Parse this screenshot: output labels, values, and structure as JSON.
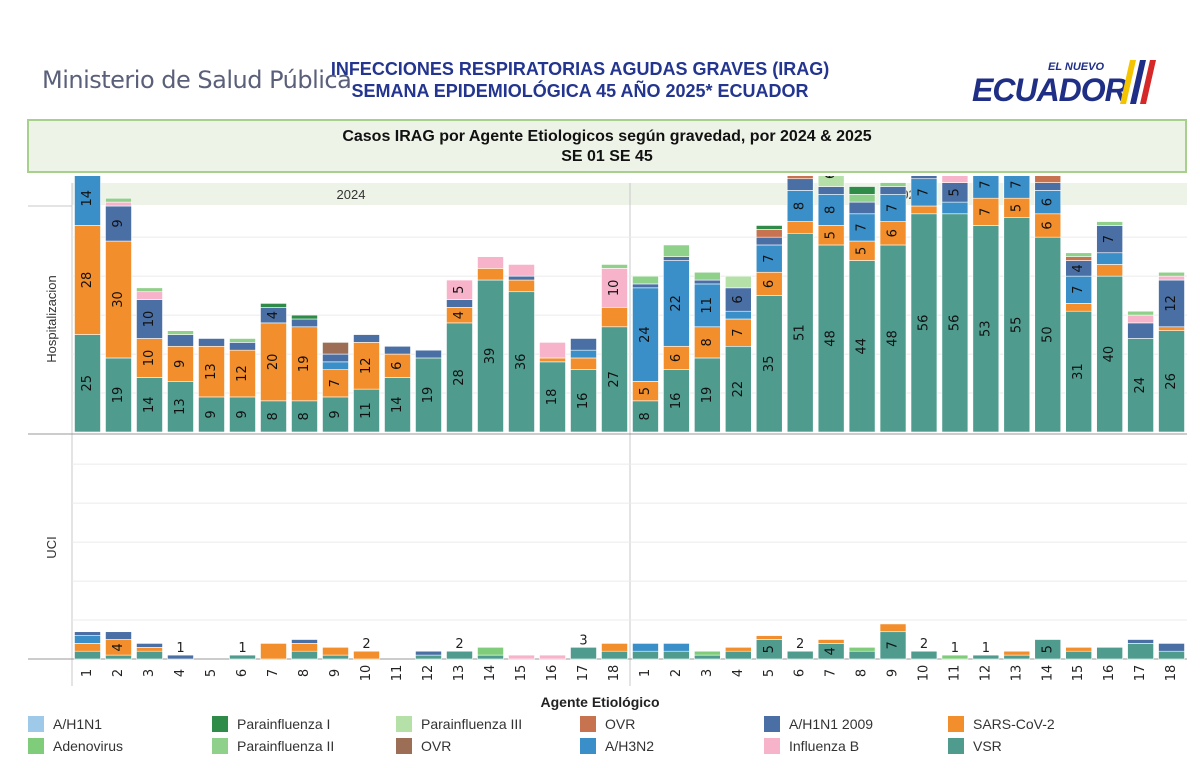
{
  "header": {
    "ministry": "Ministerio de Salud Pública",
    "title_line1": "INFECCIONES RESPIRATORIAS AGUDAS GRAVES (IRAG)",
    "title_line2": "SEMANA EPIDEMIOLÓGICA 45 AÑO 2025* ECUADOR",
    "logo_small": "EL NUEVO",
    "logo_main": "ECUADOR"
  },
  "subtitle": {
    "line1": "Casos IRAG por Agente Etiologicos  según gravedad, por  2024 & 2025",
    "line2": "SE 01  SE 45"
  },
  "colors": {
    "VSR": "#4f9c8f",
    "SARS-CoV-2": "#f28e2b",
    "A/H3N2": "#3a8fc9",
    "A/H1N1 2009": "#4a6fa5",
    "Influenza B": "#f7b3c9",
    "OVR_a": "#c8734f",
    "OVR_b": "#9b6e55",
    "Adenovirus": "#7fcc7a",
    "Parainfluenza II": "#8fd18a",
    "Parainfluenza III": "#b5e0a8",
    "Parainfluenza I": "#2e8b48",
    "A/H1N1": "#9ec9e8"
  },
  "chart_data": {
    "type": "bar",
    "stacked": true,
    "panels": [
      "2024",
      "2025"
    ],
    "rows": [
      "Hospitalizacion",
      "UCI"
    ],
    "categories": [
      "1",
      "2",
      "3",
      "4",
      "5",
      "6",
      "7",
      "8",
      "9",
      "10",
      "11",
      "12",
      "13",
      "14",
      "15",
      "16",
      "17",
      "18"
    ],
    "xlabel": "Agente Etiológico",
    "ylim": [
      0,
      58
    ],
    "grid": true,
    "legend_position": "bottom",
    "stack_order": [
      "VSR",
      "SARS-CoV-2",
      "A/H3N2",
      "A/H1N1 2009",
      "Influenza B",
      "OVR_a",
      "OVR_b",
      "Adenovirus",
      "Parainfluenza II",
      "Parainfluenza III",
      "Parainfluenza I",
      "A/H1N1"
    ],
    "hospitalizacion": {
      "2024": [
        {
          "VSR": 25,
          "SARS-CoV-2": 28,
          "Influenza B": 3,
          "A/H1N1 2009": 13,
          "A/H3N2": 14,
          "Parainfluenza II": 2,
          "Parainfluenza I": 1
        },
        {
          "VSR": 19,
          "SARS-CoV-2": 30,
          "Influenza B": 1,
          "A/H1N1 2009": 9,
          "Parainfluenza II": 1
        },
        {
          "VSR": 14,
          "SARS-CoV-2": 10,
          "Influenza B": 2,
          "A/H1N1 2009": 10,
          "Parainfluenza II": 1
        },
        {
          "VSR": 13,
          "SARS-CoV-2": 9,
          "A/H1N1 2009": 3,
          "Parainfluenza II": 1
        },
        {
          "VSR": 9,
          "SARS-CoV-2": 13,
          "A/H1N1 2009": 2
        },
        {
          "VSR": 9,
          "SARS-CoV-2": 12,
          "A/H1N1 2009": 2,
          "Parainfluenza II": 1
        },
        {
          "VSR": 8,
          "SARS-CoV-2": 20,
          "A/H1N1 2009": 4,
          "Parainfluenza I": 1
        },
        {
          "VSR": 8,
          "SARS-CoV-2": 19,
          "A/H1N1 2009": 2,
          "Parainfluenza I": 1
        },
        {
          "VSR": 9,
          "SARS-CoV-2": 7,
          "A/H3N2": 2,
          "A/H1N1 2009": 2,
          "OVR_b": 3
        },
        {
          "VSR": 11,
          "SARS-CoV-2": 12,
          "A/H1N1 2009": 2
        },
        {
          "VSR": 14,
          "SARS-CoV-2": 6,
          "A/H1N1 2009": 2
        },
        {
          "VSR": 19,
          "A/H1N1 2009": 2
        },
        {
          "VSR": 28,
          "SARS-CoV-2": 4,
          "Influenza B": 5,
          "A/H1N1 2009": 2
        },
        {
          "VSR": 39,
          "SARS-CoV-2": 3,
          "Influenza B": 3
        },
        {
          "VSR": 36,
          "SARS-CoV-2": 3,
          "Influenza B": 3,
          "A/H1N1 2009": 1
        },
        {
          "VSR": 18,
          "SARS-CoV-2": 1,
          "Influenza B": 4
        },
        {
          "VSR": 16,
          "SARS-CoV-2": 3,
          "A/H3N2": 2,
          "A/H1N1 2009": 3
        },
        {
          "VSR": 27,
          "SARS-CoV-2": 5,
          "Influenza B": 10,
          "Parainfluenza II": 1
        }
      ],
      "2025": [
        {
          "VSR": 8,
          "SARS-CoV-2": 5,
          "A/H3N2": 24,
          "A/H1N1 2009": 1,
          "Parainfluenza II": 2
        },
        {
          "VSR": 16,
          "SARS-CoV-2": 6,
          "A/H3N2": 22,
          "A/H1N1 2009": 1,
          "Parainfluenza II": 3
        },
        {
          "VSR": 19,
          "SARS-CoV-2": 8,
          "A/H3N2": 11,
          "A/H1N1 2009": 1,
          "Parainfluenza II": 2
        },
        {
          "VSR": 22,
          "SARS-CoV-2": 7,
          "A/H3N2": 2,
          "A/H1N1 2009": 6,
          "Parainfluenza III": 3
        },
        {
          "VSR": 35,
          "SARS-CoV-2": 6,
          "A/H3N2": 7,
          "A/H1N1 2009": 2,
          "OVR_a": 2,
          "Parainfluenza I": 1
        },
        {
          "VSR": 51,
          "SARS-CoV-2": 3,
          "A/H3N2": 8,
          "A/H1N1 2009": 3,
          "OVR_a": 3,
          "Parainfluenza II": 2,
          "Parainfluenza I": 1
        },
        {
          "VSR": 48,
          "SARS-CoV-2": 5,
          "A/H3N2": 8,
          "A/H1N1 2009": 2,
          "Parainfluenza III": 6,
          "A/H1N1": 1
        },
        {
          "VSR": 44,
          "SARS-CoV-2": 5,
          "A/H3N2": 7,
          "A/H1N1 2009": 3,
          "Parainfluenza II": 2,
          "Parainfluenza I": 2
        },
        {
          "VSR": 48,
          "SARS-CoV-2": 6,
          "A/H3N2": 7,
          "A/H1N1 2009": 2,
          "Parainfluenza II": 1
        },
        {
          "VSR": 56,
          "SARS-CoV-2": 2,
          "A/H3N2": 7,
          "A/H1N1 2009": 2,
          "Parainfluenza II": 2
        },
        {
          "VSR": 56,
          "Influenza B": 4,
          "A/H3N2": 3,
          "A/H1N1 2009": 5,
          "OVR_a": 1
        },
        {
          "VSR": 53,
          "SARS-CoV-2": 7,
          "A/H3N2": 7,
          "A/H1N1 2009": 2,
          "OVR_a": 1
        },
        {
          "VSR": 55,
          "SARS-CoV-2": 5,
          "A/H3N2": 7,
          "A/H1N1 2009": 4,
          "Parainfluenza II": 1
        },
        {
          "VSR": 50,
          "SARS-CoV-2": 6,
          "A/H3N2": 6,
          "A/H1N1 2009": 2,
          "OVR_a": 2,
          "Parainfluenza I": 1
        },
        {
          "VSR": 31,
          "SARS-CoV-2": 2,
          "A/H3N2": 7,
          "A/H1N1 2009": 4,
          "OVR_a": 1,
          "Parainfluenza II": 1
        },
        {
          "VSR": 40,
          "SARS-CoV-2": 3,
          "A/H1N1 2009": 7,
          "A/H3N2": 3,
          "Parainfluenza II": 1
        },
        {
          "VSR": 24,
          "Influenza B": 2,
          "A/H1N1 2009": 4,
          "Parainfluenza II": 1
        },
        {
          "VSR": 26,
          "SARS-CoV-2": 1,
          "Influenza B": 1,
          "A/H1N1 2009": 12,
          "Parainfluenza II": 1
        }
      ]
    },
    "uci": {
      "2024": [
        {
          "VSR": 2,
          "SARS-CoV-2": 2,
          "A/H1N1 2009": 1,
          "A/H3N2": 2
        },
        {
          "VSR": 1,
          "SARS-CoV-2": 4,
          "A/H1N1 2009": 2
        },
        {
          "VSR": 2,
          "SARS-CoV-2": 1,
          "A/H1N1 2009": 1
        },
        {
          "A/H1N1 2009": 1
        },
        {},
        {
          "VSR": 1
        },
        {
          "SARS-CoV-2": 4
        },
        {
          "VSR": 2,
          "SARS-CoV-2": 2,
          "A/H1N1 2009": 1
        },
        {
          "VSR": 1,
          "SARS-CoV-2": 2
        },
        {
          "SARS-CoV-2": 2
        },
        {},
        {
          "VSR": 1,
          "A/H1N1 2009": 1
        },
        {
          "VSR": 2
        },
        {
          "VSR": 1,
          "Adenovirus": 2
        },
        {
          "Influenza B": 1
        },
        {
          "Influenza B": 1
        },
        {
          "VSR": 3
        },
        {
          "VSR": 2,
          "SARS-CoV-2": 2
        }
      ],
      "2025": [
        {
          "VSR": 2,
          "A/H3N2": 2
        },
        {
          "VSR": 2,
          "A/H3N2": 2
        },
        {
          "VSR": 1,
          "Adenovirus": 1
        },
        {
          "VSR": 2,
          "SARS-CoV-2": 1
        },
        {
          "VSR": 5,
          "SARS-CoV-2": 1
        },
        {
          "VSR": 2
        },
        {
          "VSR": 4,
          "SARS-CoV-2": 1
        },
        {
          "VSR": 2,
          "Adenovirus": 1
        },
        {
          "VSR": 7,
          "SARS-CoV-2": 2
        },
        {
          "VSR": 2
        },
        {
          "Adenovirus": 1
        },
        {
          "VSR": 1
        },
        {
          "VSR": 1,
          "SARS-CoV-2": 1
        },
        {
          "VSR": 5
        },
        {
          "VSR": 2,
          "SARS-CoV-2": 1
        },
        {
          "VSR": 3
        },
        {
          "VSR": 4,
          "A/H1N1 2009": 1
        },
        {
          "VSR": 2,
          "A/H1N1 2009": 2
        }
      ]
    },
    "labels": {
      "hospitalizacion": {
        "2024": [
          [
            [
              "VSR",
              25
            ],
            [
              "SARS-CoV-2",
              28
            ],
            [
              "A/H1N1 2009",
              13
            ],
            [
              "A/H3N2",
              14
            ]
          ],
          [
            [
              "VSR",
              19
            ],
            [
              "SARS-CoV-2",
              30
            ],
            [
              "A/H1N1 2009",
              9
            ]
          ],
          [
            [
              "VSR",
              14
            ],
            [
              "SARS-CoV-2",
              10
            ],
            [
              "A/H1N1 2009",
              10
            ]
          ],
          [
            [
              "VSR",
              13
            ],
            [
              "SARS-CoV-2",
              9
            ]
          ],
          [
            [
              "VSR",
              9
            ],
            [
              "SARS-CoV-2",
              13
            ]
          ],
          [
            [
              "VSR",
              9
            ],
            [
              "SARS-CoV-2",
              12
            ]
          ],
          [
            [
              "VSR",
              8
            ],
            [
              "SARS-CoV-2",
              20
            ],
            [
              "A/H1N1 2009",
              4
            ]
          ],
          [
            [
              "VSR",
              8
            ],
            [
              "SARS-CoV-2",
              19
            ]
          ],
          [
            [
              "VSR",
              9
            ],
            [
              "SARS-CoV-2",
              7
            ]
          ],
          [
            [
              "VSR",
              11
            ],
            [
              "SARS-CoV-2",
              12
            ]
          ],
          [
            [
              "VSR",
              14
            ],
            [
              "SARS-CoV-2",
              6
            ]
          ],
          [
            [
              "VSR",
              19
            ]
          ],
          [
            [
              "VSR",
              28
            ],
            [
              "SARS-CoV-2",
              4
            ],
            [
              "Influenza B",
              5
            ]
          ],
          [
            [
              "VSR",
              39
            ]
          ],
          [
            [
              "VSR",
              36
            ]
          ],
          [
            [
              "VSR",
              18
            ]
          ],
          [
            [
              "VSR",
              16
            ]
          ],
          [
            [
              "VSR",
              27
            ],
            [
              "Influenza B",
              10
            ]
          ]
        ],
        "2025": [
          [
            [
              "VSR",
              8
            ],
            [
              "SARS-CoV-2",
              5
            ],
            [
              "A/H3N2",
              24
            ]
          ],
          [
            [
              "VSR",
              16
            ],
            [
              "SARS-CoV-2",
              6
            ],
            [
              "A/H3N2",
              22
            ]
          ],
          [
            [
              "VSR",
              19
            ],
            [
              "SARS-CoV-2",
              8
            ],
            [
              "A/H3N2",
              11
            ]
          ],
          [
            [
              "VSR",
              22
            ],
            [
              "SARS-CoV-2",
              7
            ],
            [
              "A/H1N1 2009",
              6
            ]
          ],
          [
            [
              "VSR",
              35
            ],
            [
              "SARS-CoV-2",
              6
            ],
            [
              "A/H3N2",
              7
            ]
          ],
          [
            [
              "VSR",
              51
            ],
            [
              "A/H3N2",
              8
            ]
          ],
          [
            [
              "VSR",
              48
            ],
            [
              "SARS-CoV-2",
              5
            ],
            [
              "A/H3N2",
              8
            ],
            [
              "Parainfluenza III",
              6
            ]
          ],
          [
            [
              "VSR",
              44
            ],
            [
              "SARS-CoV-2",
              5
            ],
            [
              "A/H3N2",
              7
            ]
          ],
          [
            [
              "VSR",
              48
            ],
            [
              "SARS-CoV-2",
              6
            ],
            [
              "A/H3N2",
              7
            ]
          ],
          [
            [
              "VSR",
              56
            ],
            [
              "A/H3N2",
              7
            ]
          ],
          [
            [
              "VSR",
              56
            ],
            [
              "A/H1N1 2009",
              5
            ]
          ],
          [
            [
              "VSR",
              53
            ],
            [
              "SARS-CoV-2",
              7
            ],
            [
              "A/H3N2",
              7
            ]
          ],
          [
            [
              "VSR",
              55
            ],
            [
              "SARS-CoV-2",
              5
            ],
            [
              "A/H3N2",
              7
            ],
            [
              "A/H1N1 2009",
              4
            ]
          ],
          [
            [
              "VSR",
              50
            ],
            [
              "SARS-CoV-2",
              6
            ],
            [
              "A/H3N2",
              6
            ]
          ],
          [
            [
              "VSR",
              31
            ],
            [
              "A/H3N2",
              7
            ],
            [
              "A/H1N1 2009",
              4
            ]
          ],
          [
            [
              "VSR",
              40
            ],
            [
              "A/H1N1 2009",
              7
            ]
          ],
          [
            [
              "VSR",
              24
            ]
          ],
          [
            [
              "VSR",
              26
            ],
            [
              "A/H1N1 2009",
              12
            ]
          ]
        ]
      },
      "uci": {
        "2024": [
          [],
          [
            [
              "SARS-CoV-2",
              4
            ]
          ],
          [],
          [
            [
              "top",
              1
            ]
          ],
          [],
          [
            [
              "top",
              1
            ]
          ],
          [],
          [],
          [],
          [
            [
              "top",
              2
            ]
          ],
          [],
          [],
          [
            [
              "top",
              2
            ]
          ],
          [],
          [],
          [],
          [
            [
              "top",
              3
            ]
          ],
          []
        ],
        "2025": [
          [],
          [],
          [],
          [],
          [
            [
              "VSR",
              5
            ]
          ],
          [
            [
              "top",
              2
            ]
          ],
          [
            [
              "VSR",
              4
            ]
          ],
          [],
          [
            [
              "VSR",
              7
            ]
          ],
          [
            [
              "top",
              2
            ]
          ],
          [
            [
              "top",
              1
            ]
          ],
          [
            [
              "top",
              1
            ]
          ],
          [],
          [
            [
              "VSR",
              5
            ]
          ],
          [],
          [],
          [],
          []
        ]
      }
    },
    "legend": [
      {
        "label": "A/H1N1",
        "key": "A/H1N1"
      },
      {
        "label": "Parainfluenza I",
        "key": "Parainfluenza I"
      },
      {
        "label": "Parainfluenza III",
        "key": "Parainfluenza III"
      },
      {
        "label": "OVR",
        "key": "OVR_a"
      },
      {
        "label": "A/H1N1 2009",
        "key": "A/H1N1 2009"
      },
      {
        "label": "SARS-CoV-2",
        "key": "SARS-CoV-2"
      },
      {
        "label": "Adenovirus",
        "key": "Adenovirus"
      },
      {
        "label": "Parainfluenza II",
        "key": "Parainfluenza II"
      },
      {
        "label": "OVR",
        "key": "OVR_b"
      },
      {
        "label": "A/H3N2",
        "key": "A/H3N2"
      },
      {
        "label": "Influenza B",
        "key": "Influenza B"
      },
      {
        "label": "VSR",
        "key": "VSR"
      }
    ]
  }
}
